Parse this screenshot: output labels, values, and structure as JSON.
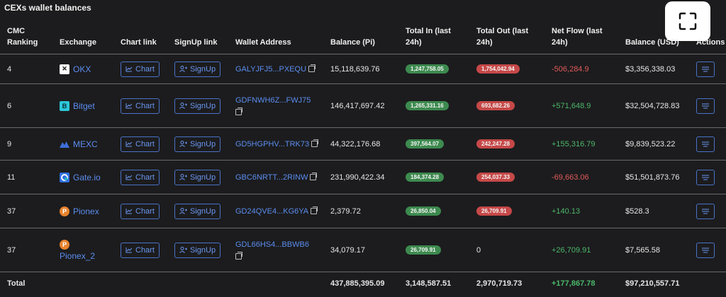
{
  "title": "CEXs wallet balances",
  "columns": {
    "ranking": "CMC Ranking",
    "exchange": "Exchange",
    "chart": "Chart link",
    "signup": "SignUp link",
    "address": "Wallet Address",
    "balance_pi": "Balance (Pi)",
    "total_in": "Total In (last 24h)",
    "total_out": "Total Out (last 24h)",
    "net_flow": "Net Flow (last 24h)",
    "balance_usd": "Balance (USD)",
    "actions": "Actions"
  },
  "buttons": {
    "chart": "Chart",
    "signup": "SignUp"
  },
  "rows": [
    {
      "rank": "4",
      "exchange": "OKX",
      "address": "GALYJFJ5...PXEQU",
      "balance_pi": "15,118,639.76",
      "total_in": "1,247,758.05",
      "total_out": "1,754,042.94",
      "net_flow": "-506,284.9",
      "balance_usd": "$3,356,338.03"
    },
    {
      "rank": "6",
      "exchange": "Bitget",
      "address": "GDFNWH6Z...FWJ75",
      "balance_pi": "146,417,697.42",
      "total_in": "1,265,331.16",
      "total_out": "693,682.26",
      "net_flow": "+571,648.9",
      "balance_usd": "$32,504,728.83"
    },
    {
      "rank": "9",
      "exchange": "MEXC",
      "address": "GD5HGPHV...TRK73",
      "balance_pi": "44,322,176.68",
      "total_in": "397,564.07",
      "total_out": "242,247.28",
      "net_flow": "+155,316.79",
      "balance_usd": "$9,839,523.22"
    },
    {
      "rank": "11",
      "exchange": "Gate.io",
      "address": "GBC6NRTT...2RINW",
      "balance_pi": "231,990,422.34",
      "total_in": "184,374.28",
      "total_out": "254,037.33",
      "net_flow": "-69,663.06",
      "balance_usd": "$51,501,873.76"
    },
    {
      "rank": "37",
      "exchange": "Pionex",
      "address": "GD24QVE4...KG6YA",
      "balance_pi": "2,379.72",
      "total_in": "26,850.04",
      "total_out": "26,709.91",
      "net_flow": "+140.13",
      "balance_usd": "$528.3"
    },
    {
      "rank": "37",
      "exchange": "Pionex_2",
      "address": "GDL66HS4...BBWB6",
      "balance_pi": "34,079.17",
      "total_in": "26,709.91",
      "total_out": "0",
      "net_flow": "+26,709.91",
      "balance_usd": "$7,565.58"
    }
  ],
  "total": {
    "label": "Total",
    "balance_pi": "437,885,395.09",
    "total_in": "3,148,587.51",
    "total_out": "2,970,719.73",
    "net_flow": "+177,867.78",
    "balance_usd": "$97,210,557.71"
  },
  "colors": {
    "link": "#5b8def",
    "positive": "#4cb86a",
    "negative": "#e05a5a",
    "pill_green": "#3d8a4f",
    "pill_red": "#c64848"
  },
  "icons": {
    "fullscreen": "fullscreen-icon",
    "chart": "chart-line-icon",
    "signup": "user-plus-icon",
    "copy": "copy-icon",
    "actions": "menu-icon"
  }
}
